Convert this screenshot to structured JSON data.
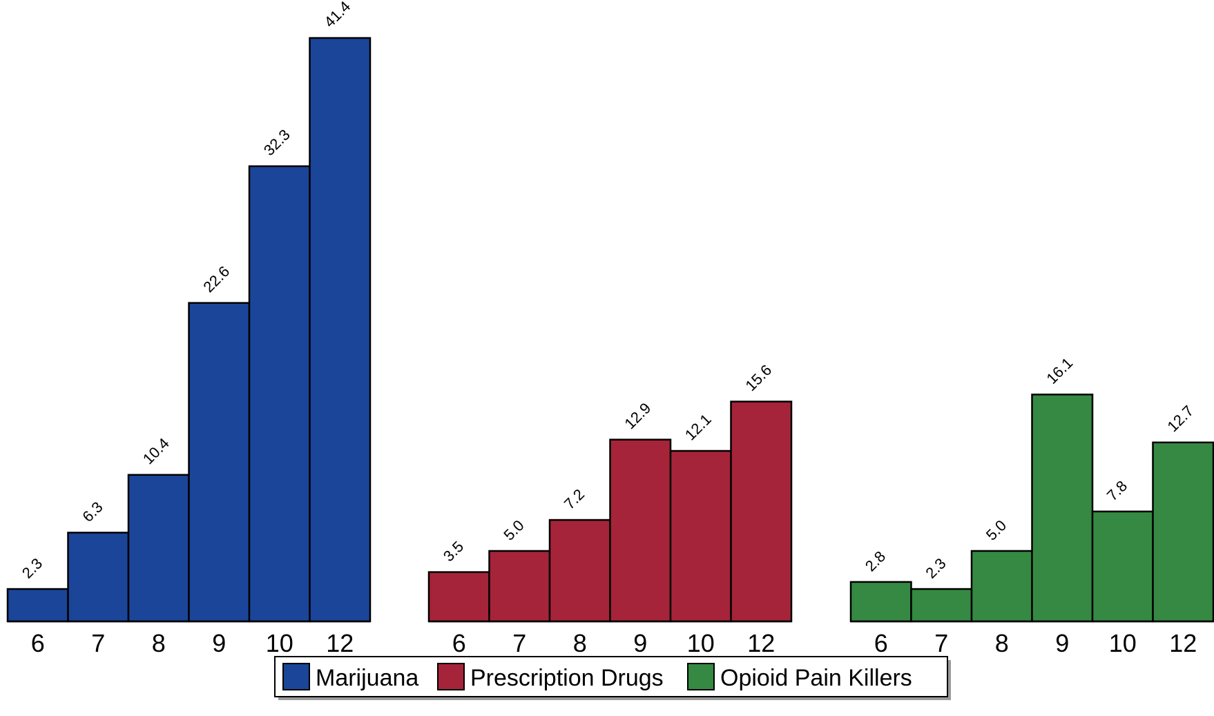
{
  "chart_data": {
    "type": "bar",
    "categories": [
      "6",
      "7",
      "8",
      "9",
      "10",
      "12"
    ],
    "ylim": [
      0,
      41.4
    ],
    "grid": false,
    "legend_position": "bottom-center",
    "series": [
      {
        "name": "Marijuana",
        "color": "#1a4599",
        "values": [
          2.3,
          6.3,
          10.4,
          22.6,
          32.3,
          41.4
        ],
        "labels": [
          "2.3",
          "6.3",
          "10.4",
          "22.6",
          "32.3",
          "41.4"
        ]
      },
      {
        "name": "Prescription Drugs",
        "color": "#a52439",
        "values": [
          3.5,
          5.0,
          7.2,
          12.9,
          12.1,
          15.6
        ],
        "labels": [
          "3.5",
          "5.0",
          "7.2",
          "12.9",
          "12.1",
          "15.6"
        ]
      },
      {
        "name": "Opioid Pain Killers",
        "color": "#358942",
        "values": [
          2.8,
          2.3,
          5.0,
          16.1,
          7.8,
          12.7
        ],
        "labels": [
          "2.8",
          "2.3",
          "5.0",
          "16.1",
          "7.8",
          "12.7"
        ]
      }
    ]
  }
}
